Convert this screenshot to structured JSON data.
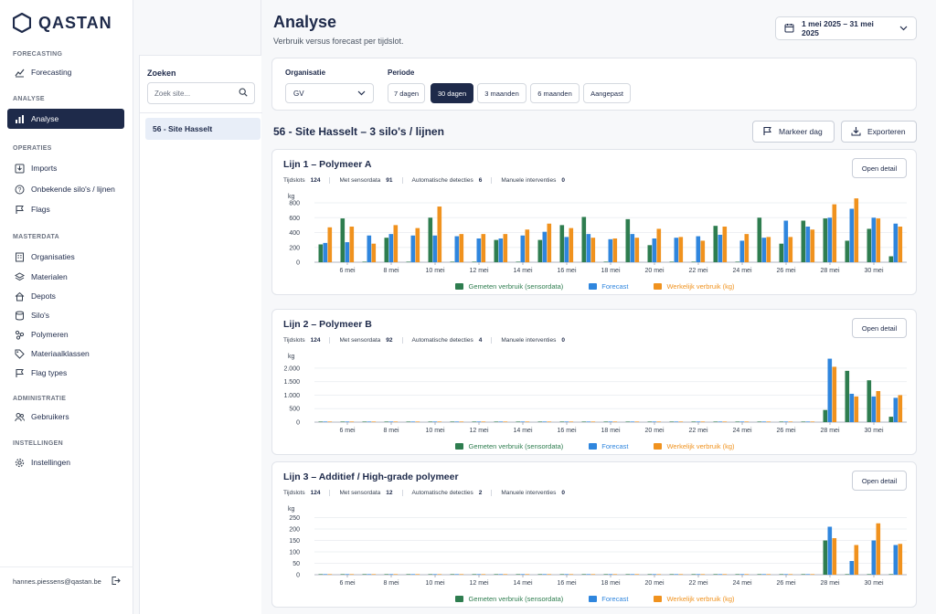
{
  "app": {
    "name": "QASTAN"
  },
  "sidebar": {
    "sections": [
      {
        "title": "FORECASTING",
        "items": [
          {
            "label": "Forecasting",
            "icon": "chart-line-icon",
            "active": false
          }
        ]
      },
      {
        "title": "ANALYSE",
        "items": [
          {
            "label": "Analyse",
            "icon": "bar-chart-icon",
            "active": true
          }
        ]
      },
      {
        "title": "OPERATIES",
        "items": [
          {
            "label": "Imports",
            "icon": "import-icon",
            "active": false
          },
          {
            "label": "Onbekende silo's / lijnen",
            "icon": "question-icon",
            "active": false
          },
          {
            "label": "Flags",
            "icon": "flag-icon",
            "active": false
          }
        ]
      },
      {
        "title": "MASTERDATA",
        "items": [
          {
            "label": "Organisaties",
            "icon": "building-icon",
            "active": false
          },
          {
            "label": "Materialen",
            "icon": "layers-icon",
            "active": false
          },
          {
            "label": "Depots",
            "icon": "home-icon",
            "active": false
          },
          {
            "label": "Silo's",
            "icon": "database-icon",
            "active": false
          },
          {
            "label": "Polymeren",
            "icon": "polymer-icon",
            "active": false
          },
          {
            "label": "Materiaalklassen",
            "icon": "tag-icon",
            "active": false
          },
          {
            "label": "Flag types",
            "icon": "flag-icon",
            "active": false
          }
        ]
      },
      {
        "title": "ADMINISTRATIE",
        "items": [
          {
            "label": "Gebruikers",
            "icon": "users-icon",
            "active": false
          }
        ]
      },
      {
        "title": "INSTELLINGEN",
        "items": [
          {
            "label": "Instellingen",
            "icon": "gear-icon",
            "active": false
          }
        ]
      }
    ],
    "user_email": "hannes.piessens@qastan.be"
  },
  "search": {
    "title": "Zoeken",
    "placeholder": "Zoek site...",
    "results": [
      "56 - Site Hasselt"
    ]
  },
  "header": {
    "title": "Analyse",
    "subtitle": "Verbruik versus forecast per tijdslot.",
    "date_range": "1 mei 2025 – 31 mei 2025"
  },
  "filters": {
    "organisation_label": "Organisatie",
    "organisation_value": "GV",
    "period_label": "Periode",
    "periods": [
      {
        "label": "7 dagen",
        "active": false
      },
      {
        "label": "30 dagen",
        "active": true
      },
      {
        "label": "3 maanden",
        "active": false
      },
      {
        "label": "6 maanden",
        "active": false
      },
      {
        "label": "Aangepast",
        "active": false
      }
    ]
  },
  "site": {
    "title": "56 - Site Hasselt – 3 silo's / lijnen",
    "mark_day_label": "Markeer dag",
    "export_label": "Exporteren"
  },
  "open_detail_label": "Open detail",
  "stat_labels": [
    "Tijdslots",
    "Met sensordata",
    "Automatische detecties",
    "Manuele interventies"
  ],
  "colors": {
    "measured": "#2e7d4f",
    "forecast": "#2f86de",
    "actual": "#f0921e",
    "navy": "#1e2a4a"
  },
  "chart_data": [
    {
      "type": "bar",
      "title": "Lijn 1 – Polymeer A",
      "stats": {
        "Tijdslots": "124",
        "Met sensordata": "91",
        "Automatische detecties": "6",
        "Manuele interventies": "0"
      },
      "ylabel": "kg",
      "ylim": [
        0,
        800
      ],
      "yticks": [
        0,
        200,
        400,
        600,
        800
      ],
      "ytick_labels": [
        "0",
        "200",
        "400",
        "600",
        "800"
      ],
      "categories": [
        "5 mei",
        "6 mei",
        "7 mei",
        "8 mei",
        "9 mei",
        "10 mei",
        "11 mei",
        "12 mei",
        "13 mei",
        "14 mei",
        "15 mei",
        "16 mei",
        "17 mei",
        "18 mei",
        "19 mei",
        "20 mei",
        "21 mei",
        "22 mei",
        "23 mei",
        "24 mei",
        "25 mei",
        "26 mei",
        "27 mei",
        "28 mei",
        "29 mei",
        "30 mei",
        "31 mei"
      ],
      "xtick_labels": [
        "6 mei",
        "8 mei",
        "10 mei",
        "12 mei",
        "14 mei",
        "16 mei",
        "18 mei",
        "20 mei",
        "22 mei",
        "24 mei",
        "26 mei",
        "28 mei",
        "30 mei"
      ],
      "series": [
        {
          "name": "Gemeten verbruik (sensordata)",
          "values": [
            240,
            590,
            0,
            330,
            0,
            600,
            0,
            0,
            300,
            0,
            300,
            500,
            610,
            0,
            580,
            230,
            0,
            0,
            490,
            0,
            600,
            250,
            560,
            590,
            290,
            450,
            80
          ]
        },
        {
          "name": "Forecast",
          "values": [
            260,
            270,
            360,
            380,
            360,
            360,
            350,
            320,
            320,
            360,
            410,
            340,
            380,
            310,
            380,
            320,
            330,
            350,
            370,
            290,
            330,
            560,
            480,
            600,
            720,
            600,
            520
          ]
        },
        {
          "name": "Werkelijk verbruik (kg)",
          "values": [
            470,
            480,
            250,
            500,
            460,
            750,
            380,
            380,
            380,
            440,
            520,
            460,
            330,
            320,
            330,
            450,
            340,
            290,
            480,
            380,
            340,
            340,
            440,
            780,
            860,
            590,
            480
          ]
        }
      ],
      "legend_position": "bottom"
    },
    {
      "type": "bar",
      "title": "Lijn 2 – Polymeer B",
      "stats": {
        "Tijdslots": "124",
        "Met sensordata": "92",
        "Automatische detecties": "4",
        "Manuele interventies": "0"
      },
      "ylabel": "kg",
      "ylim": [
        0,
        2200
      ],
      "yticks": [
        0,
        500,
        1000,
        1500,
        2000
      ],
      "ytick_labels": [
        "0",
        "500",
        "1.000",
        "1.500",
        "2.000"
      ],
      "categories": [
        "5 mei",
        "6 mei",
        "7 mei",
        "8 mei",
        "9 mei",
        "10 mei",
        "11 mei",
        "12 mei",
        "13 mei",
        "14 mei",
        "15 mei",
        "16 mei",
        "17 mei",
        "18 mei",
        "19 mei",
        "20 mei",
        "21 mei",
        "22 mei",
        "23 mei",
        "24 mei",
        "25 mei",
        "26 mei",
        "27 mei",
        "28 mei",
        "29 mei",
        "30 mei",
        "31 mei"
      ],
      "xtick_labels": [
        "6 mei",
        "8 mei",
        "10 mei",
        "12 mei",
        "14 mei",
        "16 mei",
        "18 mei",
        "20 mei",
        "22 mei",
        "24 mei",
        "26 mei",
        "28 mei",
        "30 mei"
      ],
      "series": [
        {
          "name": "Gemeten verbruik (sensordata)",
          "values": [
            20,
            20,
            20,
            20,
            20,
            20,
            20,
            20,
            20,
            20,
            20,
            20,
            20,
            20,
            20,
            20,
            20,
            20,
            20,
            20,
            20,
            20,
            20,
            450,
            1900,
            1550,
            200
          ]
        },
        {
          "name": "Forecast",
          "values": [
            15,
            15,
            15,
            15,
            15,
            15,
            15,
            15,
            15,
            15,
            15,
            15,
            15,
            15,
            15,
            15,
            15,
            15,
            15,
            15,
            15,
            15,
            15,
            2350,
            1050,
            950,
            900
          ]
        },
        {
          "name": "Werkelijk verbruik (kg)",
          "values": [
            10,
            10,
            10,
            10,
            10,
            10,
            10,
            10,
            10,
            10,
            10,
            10,
            10,
            10,
            10,
            10,
            10,
            10,
            10,
            10,
            10,
            10,
            10,
            2050,
            950,
            1150,
            1000
          ]
        }
      ],
      "legend_position": "bottom"
    },
    {
      "type": "bar",
      "title": "Lijn 3 – Additief / High-grade polymeer",
      "stats": {
        "Tijdslots": "124",
        "Met sensordata": "12",
        "Automatische detecties": "2",
        "Manuele interventies": "0"
      },
      "ylabel": "kg",
      "ylim": [
        0,
        260
      ],
      "yticks": [
        0,
        50,
        100,
        150,
        200,
        250
      ],
      "ytick_labels": [
        "0",
        "50",
        "100",
        "150",
        "200",
        "250"
      ],
      "categories": [
        "5 mei",
        "6 mei",
        "7 mei",
        "8 mei",
        "9 mei",
        "10 mei",
        "11 mei",
        "12 mei",
        "13 mei",
        "14 mei",
        "15 mei",
        "16 mei",
        "17 mei",
        "18 mei",
        "19 mei",
        "20 mei",
        "21 mei",
        "22 mei",
        "23 mei",
        "24 mei",
        "25 mei",
        "26 mei",
        "27 mei",
        "28 mei",
        "29 mei",
        "30 mei",
        "31 mei"
      ],
      "xtick_labels": [
        "6 mei",
        "8 mei",
        "10 mei",
        "12 mei",
        "14 mei",
        "16 mei",
        "18 mei",
        "20 mei",
        "22 mei",
        "24 mei",
        "26 mei",
        "28 mei",
        "30 mei"
      ],
      "series": [
        {
          "name": "Gemeten verbruik (sensordata)",
          "values": [
            2,
            2,
            2,
            2,
            2,
            2,
            2,
            2,
            2,
            2,
            2,
            2,
            2,
            2,
            2,
            2,
            2,
            2,
            2,
            2,
            2,
            2,
            2,
            150,
            0,
            0,
            0
          ]
        },
        {
          "name": "Forecast",
          "values": [
            2,
            2,
            2,
            2,
            2,
            2,
            2,
            2,
            2,
            2,
            2,
            2,
            2,
            2,
            2,
            2,
            2,
            2,
            2,
            2,
            2,
            2,
            2,
            210,
            60,
            150,
            130
          ]
        },
        {
          "name": "Werkelijk verbruik (kg)",
          "values": [
            1,
            1,
            1,
            1,
            1,
            1,
            1,
            1,
            1,
            1,
            1,
            1,
            1,
            1,
            1,
            1,
            1,
            1,
            1,
            1,
            1,
            1,
            1,
            160,
            130,
            225,
            135
          ]
        }
      ],
      "legend_position": "bottom"
    }
  ]
}
